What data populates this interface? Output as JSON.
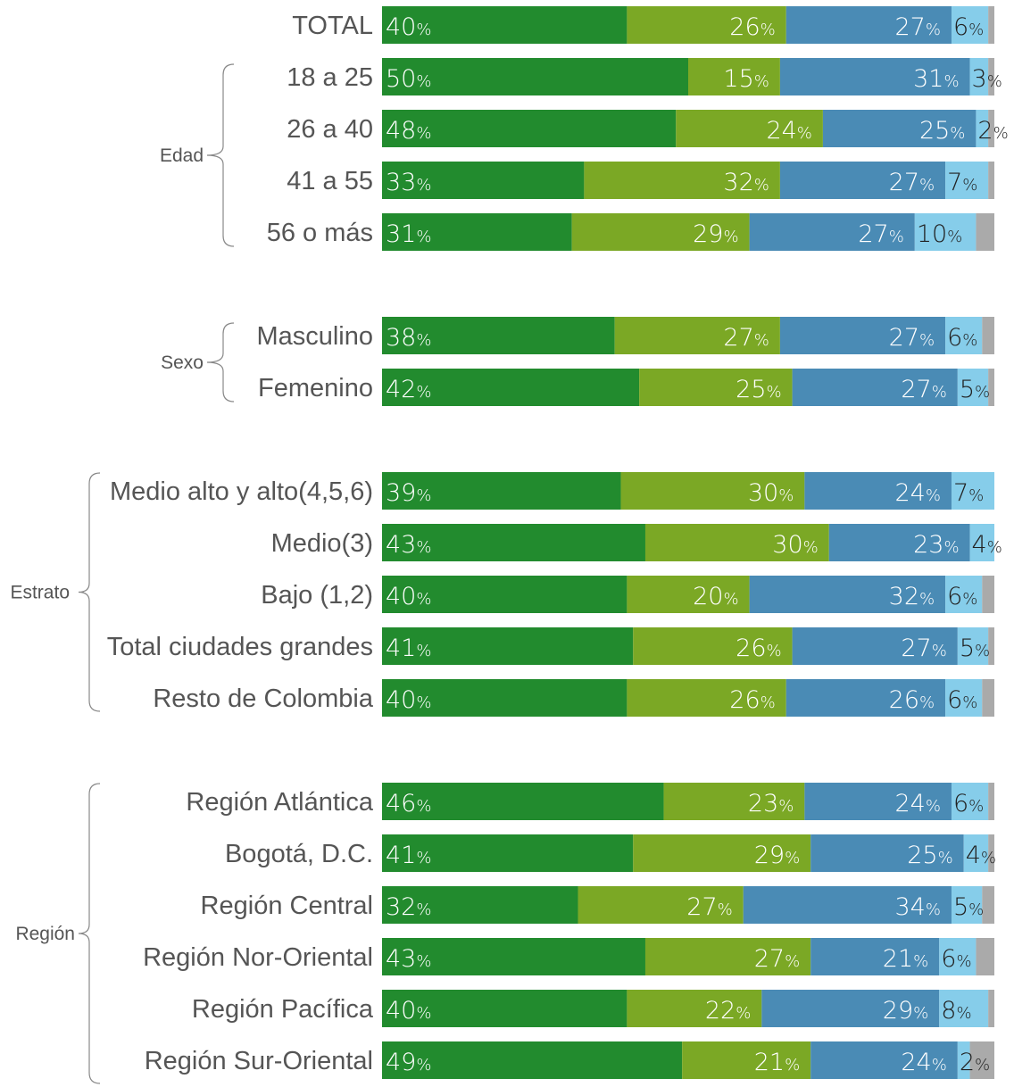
{
  "chart_data": {
    "type": "bar",
    "orientation": "horizontal",
    "stacked": true,
    "percent_suffix": "%",
    "colors": [
      "#228B2E",
      "#7BA825",
      "#4A8BB5",
      "#86CDEA",
      "#AAAAAA"
    ],
    "rows": [
      {
        "label": "TOTAL",
        "group": "",
        "values": [
          40,
          26,
          27,
          6,
          1
        ]
      },
      {
        "label": "18 a 25",
        "group": "Edad",
        "values": [
          50,
          15,
          31,
          3,
          1
        ]
      },
      {
        "label": "26 a 40",
        "group": "Edad",
        "values": [
          48,
          24,
          25,
          2,
          1
        ]
      },
      {
        "label": "41 a 55",
        "group": "Edad",
        "values": [
          33,
          32,
          27,
          7,
          1
        ]
      },
      {
        "label": "56 o más",
        "group": "Edad",
        "values": [
          31,
          29,
          27,
          10,
          3
        ]
      },
      {
        "label": "Masculino",
        "group": "Sexo",
        "values": [
          38,
          27,
          27,
          6,
          2
        ]
      },
      {
        "label": "Femenino",
        "group": "Sexo",
        "values": [
          42,
          25,
          27,
          5,
          1
        ]
      },
      {
        "label": "Medio alto y alto(4,5,6)",
        "group": "Estrato",
        "values": [
          39,
          30,
          24,
          7,
          0
        ]
      },
      {
        "label": "Medio(3)",
        "group": "Estrato",
        "values": [
          43,
          30,
          23,
          4,
          0
        ]
      },
      {
        "label": "Bajo (1,2)",
        "group": "Estrato",
        "values": [
          40,
          20,
          32,
          6,
          2
        ]
      },
      {
        "label": "Total ciudades grandes",
        "group": "Estrato",
        "values": [
          41,
          26,
          27,
          5,
          1
        ]
      },
      {
        "label": "Resto de Colombia",
        "group": "Estrato",
        "values": [
          40,
          26,
          26,
          6,
          2
        ]
      },
      {
        "label": "Región Atlántica",
        "group": "Región",
        "values": [
          46,
          23,
          24,
          6,
          1
        ]
      },
      {
        "label": "Bogotá, D.C.",
        "group": "Región",
        "values": [
          41,
          29,
          25,
          4,
          1
        ]
      },
      {
        "label": "Región Central",
        "group": "Región",
        "values": [
          32,
          27,
          34,
          5,
          2
        ]
      },
      {
        "label": "Región Nor-Oriental",
        "group": "Región",
        "values": [
          43,
          27,
          21,
          6,
          3
        ]
      },
      {
        "label": "Región Pacífica",
        "group": "Región",
        "values": [
          40,
          22,
          29,
          8,
          1
        ]
      },
      {
        "label": "Región Sur-Oriental",
        "group": "Región",
        "values": [
          49,
          21,
          24,
          2,
          4
        ]
      }
    ],
    "groups": [
      "Edad",
      "Sexo",
      "Estrato",
      "Región"
    ]
  }
}
